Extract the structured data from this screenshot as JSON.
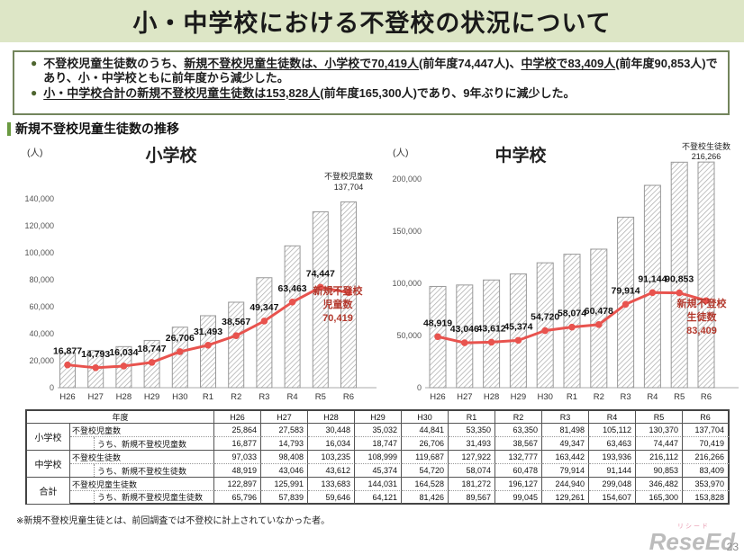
{
  "title": "小・中学校における不登校の状況について",
  "summary": {
    "bullets": [
      {
        "segments": [
          {
            "text": "不登校児童生徒数のうち、",
            "underline": false
          },
          {
            "text": "新規不登校児童生徒数は、小学校で70,419人",
            "underline": true
          },
          {
            "text": "(前年度74,447人)、",
            "underline": false
          },
          {
            "text": "中学校で83,409人",
            "underline": true
          },
          {
            "text": "(前年度90,853人)であり、小・中学校ともに前年度から減少した。",
            "underline": false
          }
        ]
      },
      {
        "segments": [
          {
            "text": "小・中学校合計の新規不登校児童生徒数は153,828人",
            "underline": true
          },
          {
            "text": "(前年度165,300人)であり、9年ぶりに減少した。",
            "underline": false
          }
        ]
      }
    ]
  },
  "section_title": "新規不登校児童生徒数の推移",
  "chart_data": [
    {
      "type": "bar",
      "title": "小学校",
      "unit_label": "(人)",
      "categories": [
        "H26",
        "H27",
        "H28",
        "H29",
        "H30",
        "R1",
        "R2",
        "R3",
        "R4",
        "R5",
        "R6"
      ],
      "series": [
        {
          "name": "不登校児童数",
          "type": "bar",
          "values": [
            25864,
            27583,
            30448,
            35032,
            44841,
            53350,
            63350,
            81498,
            105112,
            130370,
            137704
          ]
        },
        {
          "name": "新規不登校児童数",
          "type": "line",
          "values": [
            16877,
            14793,
            16034,
            18747,
            26706,
            31493,
            38567,
            49347,
            63463,
            74447,
            70419
          ]
        }
      ],
      "y_ticks": [
        0,
        20000,
        40000,
        60000,
        80000,
        100000,
        120000,
        140000
      ],
      "ylim": [
        0,
        150000
      ],
      "grid": false,
      "bar_annotation": [
        "不登校児童数",
        "137,704"
      ],
      "line_annotation": [
        "新規不登校",
        "児童数",
        "70,419"
      ]
    },
    {
      "type": "bar",
      "title": "中学校",
      "unit_label": "(人)",
      "categories": [
        "H26",
        "H27",
        "H28",
        "H29",
        "H30",
        "R1",
        "R2",
        "R3",
        "R4",
        "R5",
        "R6"
      ],
      "series": [
        {
          "name": "不登校生徒数",
          "type": "bar",
          "values": [
            97033,
            98408,
            103235,
            108999,
            119687,
            127922,
            132777,
            163442,
            193936,
            216112,
            216266
          ]
        },
        {
          "name": "新規不登校生徒数",
          "type": "line",
          "values": [
            48919,
            43046,
            43612,
            45374,
            54720,
            58074,
            60478,
            79914,
            91144,
            90853,
            83409
          ]
        }
      ],
      "y_ticks": [
        0,
        50000,
        100000,
        150000,
        200000
      ],
      "ylim": [
        0,
        240000
      ],
      "grid": false,
      "bar_annotation": [
        "不登校生徒数",
        "216,266"
      ],
      "line_annotation": [
        "新規不登校",
        "生徒数",
        "83,409"
      ]
    }
  ],
  "table": {
    "year_header": "年度",
    "years": [
      "H26",
      "H27",
      "H28",
      "H29",
      "H30",
      "R1",
      "R2",
      "R3",
      "R4",
      "R5",
      "R6"
    ],
    "rows": [
      {
        "group": "小学校",
        "metric": "不登校児童数",
        "indent": false,
        "values": [
          "25,864",
          "27,583",
          "30,448",
          "35,032",
          "44,841",
          "53,350",
          "63,350",
          "81,498",
          "105,112",
          "130,370",
          "137,704"
        ]
      },
      {
        "group": null,
        "metric": "うち、新規不登校児童数",
        "indent": true,
        "values": [
          "16,877",
          "14,793",
          "16,034",
          "18,747",
          "26,706",
          "31,493",
          "38,567",
          "49,347",
          "63,463",
          "74,447",
          "70,419"
        ]
      },
      {
        "group": "中学校",
        "metric": "不登校生徒数",
        "indent": false,
        "values": [
          "97,033",
          "98,408",
          "103,235",
          "108,999",
          "119,687",
          "127,922",
          "132,777",
          "163,442",
          "193,936",
          "216,112",
          "216,266"
        ]
      },
      {
        "group": null,
        "metric": "うち、新規不登校生徒数",
        "indent": true,
        "values": [
          "48,919",
          "43,046",
          "43,612",
          "45,374",
          "54,720",
          "58,074",
          "60,478",
          "79,914",
          "91,144",
          "90,853",
          "83,409"
        ]
      },
      {
        "group": "合計",
        "metric": "不登校児童生徒数",
        "indent": false,
        "values": [
          "122,897",
          "125,991",
          "133,683",
          "144,031",
          "164,528",
          "181,272",
          "196,127",
          "244,940",
          "299,048",
          "346,482",
          "353,970"
        ]
      },
      {
        "group": null,
        "metric": "うち、新規不登校児童生徒数",
        "indent": true,
        "values": [
          "65,796",
          "57,839",
          "59,646",
          "64,121",
          "81,426",
          "89,567",
          "99,045",
          "129,261",
          "154,607",
          "165,300",
          "153,828"
        ]
      }
    ]
  },
  "footnote": "※新規不登校児童生徒とは、前回調査では不登校に計上されていなかった者。",
  "logo": {
    "ruby": "リシード",
    "text": "ReseEd"
  },
  "page_number": "23",
  "colors": {
    "title_bg": "#dde6c6",
    "box_border": "#73855c",
    "bullet": "#4e652f",
    "section_bar": "#6a9a41",
    "line_red": "#e8534e",
    "annotation_red": "#b3382c",
    "bar_stroke": "#999999",
    "hatch": "#a8a8a8"
  }
}
